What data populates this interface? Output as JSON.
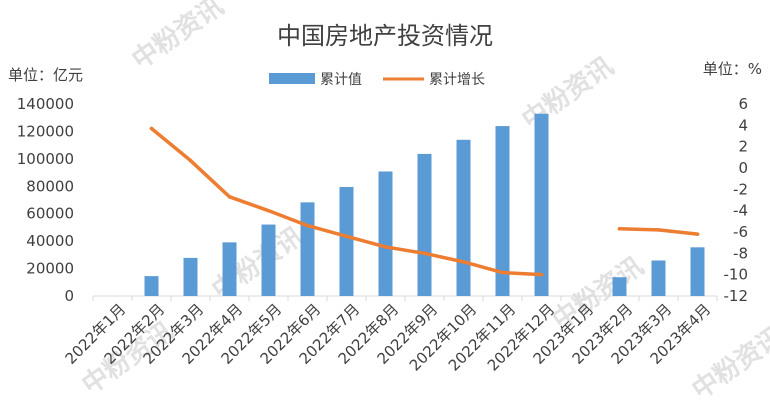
{
  "watermark_text": "中粉资讯",
  "chart_data": {
    "type": "bar+line",
    "title": "中国房地产投资情况",
    "left_unit": "单位：亿元",
    "right_unit": "单位：%",
    "legend_position": "top",
    "grid": false,
    "categories": [
      "2022年1月",
      "2022年2月",
      "2022年3月",
      "2022年4月",
      "2022年5月",
      "2022年6月",
      "2022年7月",
      "2022年8月",
      "2022年9月",
      "2022年10月",
      "2022年11月",
      "2022年12月",
      "2023年1月",
      "2023年2月",
      "2023年3月",
      "2023年4月"
    ],
    "left_axis": {
      "min": 0,
      "max": 140000,
      "step": 20000,
      "ticks": [
        "0",
        "20000",
        "40000",
        "60000",
        "80000",
        "100000",
        "120000",
        "140000"
      ]
    },
    "right_axis": {
      "min": -12,
      "max": 6,
      "step": 2,
      "ticks": [
        "6",
        "4",
        "2",
        "0",
        "-2",
        "-4",
        "-6",
        "-8",
        "-10",
        "-12"
      ]
    },
    "series": [
      {
        "name": "累计值",
        "kind": "bar",
        "color": "#5b9bd5",
        "values": [
          null,
          14500,
          27800,
          39100,
          52100,
          68300,
          79500,
          90800,
          103600,
          113900,
          123900,
          132900,
          null,
          13700,
          25900,
          35500
        ]
      },
      {
        "name": "累计增长",
        "kind": "line",
        "color": "#ed7d31",
        "values": [
          null,
          3.7,
          0.7,
          -2.7,
          -4.0,
          -5.4,
          -6.4,
          -7.4,
          -8.0,
          -8.8,
          -9.8,
          -10.0,
          null,
          -5.7,
          -5.8,
          -6.2
        ]
      }
    ]
  }
}
